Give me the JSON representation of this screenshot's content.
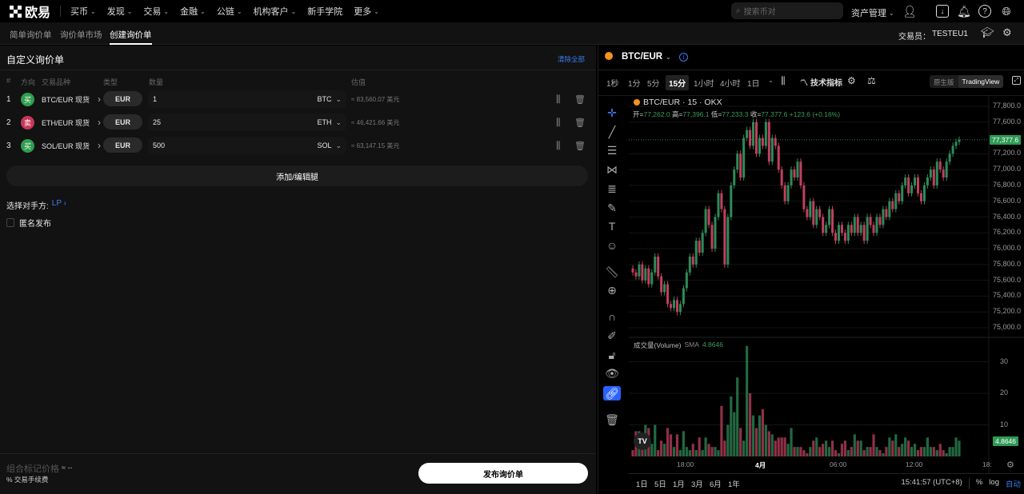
{
  "topnav": {
    "logo": "欧易",
    "items": [
      "买币",
      "发现",
      "交易",
      "金融",
      "公链",
      "机构客户",
      "新手学院",
      "更多"
    ],
    "items_chevron": [
      true,
      true,
      true,
      true,
      true,
      true,
      false,
      true
    ],
    "search_placeholder": "搜索币对",
    "asset_mgmt": "资产管理"
  },
  "subnav": {
    "tabs": [
      "简单询价单",
      "询价单市场",
      "创建询价单"
    ],
    "active": 2,
    "trader_label": "交易员：",
    "trader": "TESTEU1"
  },
  "rfq": {
    "title": "自定义询价单",
    "clear_all": "清除全部",
    "columns": [
      "#",
      "方向",
      "交易品种",
      "类型",
      "数量",
      "估值"
    ],
    "legs": [
      {
        "no": "1",
        "side": "买",
        "side_color": "#2f9e4f",
        "instrument": "BTC/EUR 现货",
        "type": "EUR",
        "qty": "1",
        "unit": "BTC",
        "estimate": "≈ 83,560.07 美元"
      },
      {
        "no": "2",
        "side": "卖",
        "side_color": "#c9365a",
        "instrument": "ETH/EUR 现货",
        "type": "EUR",
        "qty": "25",
        "unit": "ETH",
        "estimate": "≈ 46,421.66 美元"
      },
      {
        "no": "3",
        "side": "买",
        "side_color": "#2f9e4f",
        "instrument": "SOL/EUR 现货",
        "type": "EUR",
        "qty": "500",
        "unit": "SOL",
        "estimate": "≈ 63,147.15 美元"
      }
    ],
    "add_edit": "添加/编辑腿",
    "counterparty_label": "选择对手方:",
    "counterparty": "LP",
    "anonymous": "匿名发布",
    "anonymous_checked": false,
    "mark_price_label": "组合标记价格",
    "mark_price": "≈ --",
    "fee_label": "% 交易手续费",
    "publish": "发布询价单"
  },
  "chart": {
    "pair": "BTC/EUR",
    "timeframes": [
      "1秒",
      "1分",
      "5分",
      "15分",
      "1小时",
      "4小时",
      "1日"
    ],
    "active_tf": 3,
    "indicators": "技术指标",
    "view_native": "原生版",
    "view_tv": "TradingView",
    "active_view": "TradingView",
    "legend_title": "BTC/EUR · 15 · OKX",
    "ohlc": {
      "o_label": "开=",
      "o": "77,262.0",
      "h_label": "高=",
      "h": "77,396.1",
      "l_label": "低=",
      "l": "77,233.3",
      "c_label": "收=",
      "c": "77,377.6",
      "chg": "+123.6 (+0.16%)"
    },
    "volume_label": "成交量(Volume)",
    "sma_label": "SMA",
    "sma_value": "4.8646",
    "last_price": "77,377.6",
    "time_ticks": [
      "18:00",
      "4月",
      "06:00",
      "12:00",
      "18:"
    ],
    "ranges": [
      "1日",
      "5日",
      "1月",
      "3月",
      "6月",
      "1年"
    ],
    "clock": "15:41:57 (UTC+8)",
    "pct": "%",
    "log": "log",
    "auto": "自动",
    "up_color": "#2e8b57",
    "down_color": "#c0405f"
  },
  "chart_data": {
    "type": "candlestick",
    "price_ticks": [
      "77,800.0",
      "77,600.0",
      "77,200.0",
      "77,000.0",
      "76,800.0",
      "76,600.0",
      "76,400.0",
      "76,200.0",
      "76,000.0",
      "75,800.0",
      "75,600.0",
      "75,400.0",
      "75,200.0",
      "75,000.0"
    ],
    "price_range": [
      75000,
      77800
    ],
    "volume_ticks": [
      "30",
      "20",
      "10"
    ],
    "volume_range": [
      0,
      35
    ],
    "close": [
      75700,
      75650,
      75800,
      75600,
      75750,
      75550,
      75700,
      75900,
      75650,
      75450,
      75550,
      75300,
      75250,
      75350,
      75200,
      75300,
      75500,
      75700,
      75900,
      75800,
      76100,
      75950,
      76200,
      76500,
      76300,
      76000,
      76400,
      76700,
      76500,
      75800,
      76400,
      76800,
      77000,
      77200,
      76900,
      77400,
      77500,
      77300,
      77600,
      77200,
      77400,
      77300,
      77600,
      77100,
      77400,
      77300,
      77000,
      76800,
      76600,
      76800,
      77000,
      76900,
      77100,
      76800,
      76500,
      76400,
      76600,
      76300,
      76500,
      76400,
      76200,
      76300,
      76500,
      76200,
      76100,
      76300,
      76200,
      76100,
      76300,
      76200,
      76400,
      76200,
      76300,
      76100,
      76400,
      76300,
      76200,
      76400,
      76300,
      76500,
      76400,
      76600,
      76500,
      76700,
      76600,
      76800,
      76900,
      76700,
      76800,
      76900,
      76700,
      76600,
      76800,
      76900,
      77000,
      76800,
      77100,
      77000,
      76900,
      77100,
      77200,
      77300,
      77350,
      77377.6
    ],
    "volume": [
      2,
      8,
      8,
      6,
      10,
      9,
      4,
      10,
      2,
      5,
      4,
      9,
      7,
      3,
      7,
      2,
      8,
      3,
      2,
      4,
      2,
      6,
      2,
      6,
      4,
      3,
      3,
      2,
      16,
      5,
      10,
      19,
      14,
      25,
      9,
      5,
      35,
      20,
      13,
      9,
      13,
      15,
      10,
      8,
      7,
      5,
      6,
      6,
      6,
      4,
      9,
      3,
      3,
      3,
      2,
      1,
      3,
      5,
      6,
      3,
      4,
      5,
      3,
      5,
      2,
      1,
      4,
      5,
      2,
      3,
      7,
      5,
      5,
      2,
      3,
      3,
      7,
      3,
      2,
      1,
      3,
      6,
      5,
      7,
      3,
      4,
      6,
      5,
      3,
      4,
      2,
      3,
      3,
      6,
      3,
      3,
      2,
      4,
      2,
      1,
      3,
      3,
      6,
      5
    ]
  }
}
